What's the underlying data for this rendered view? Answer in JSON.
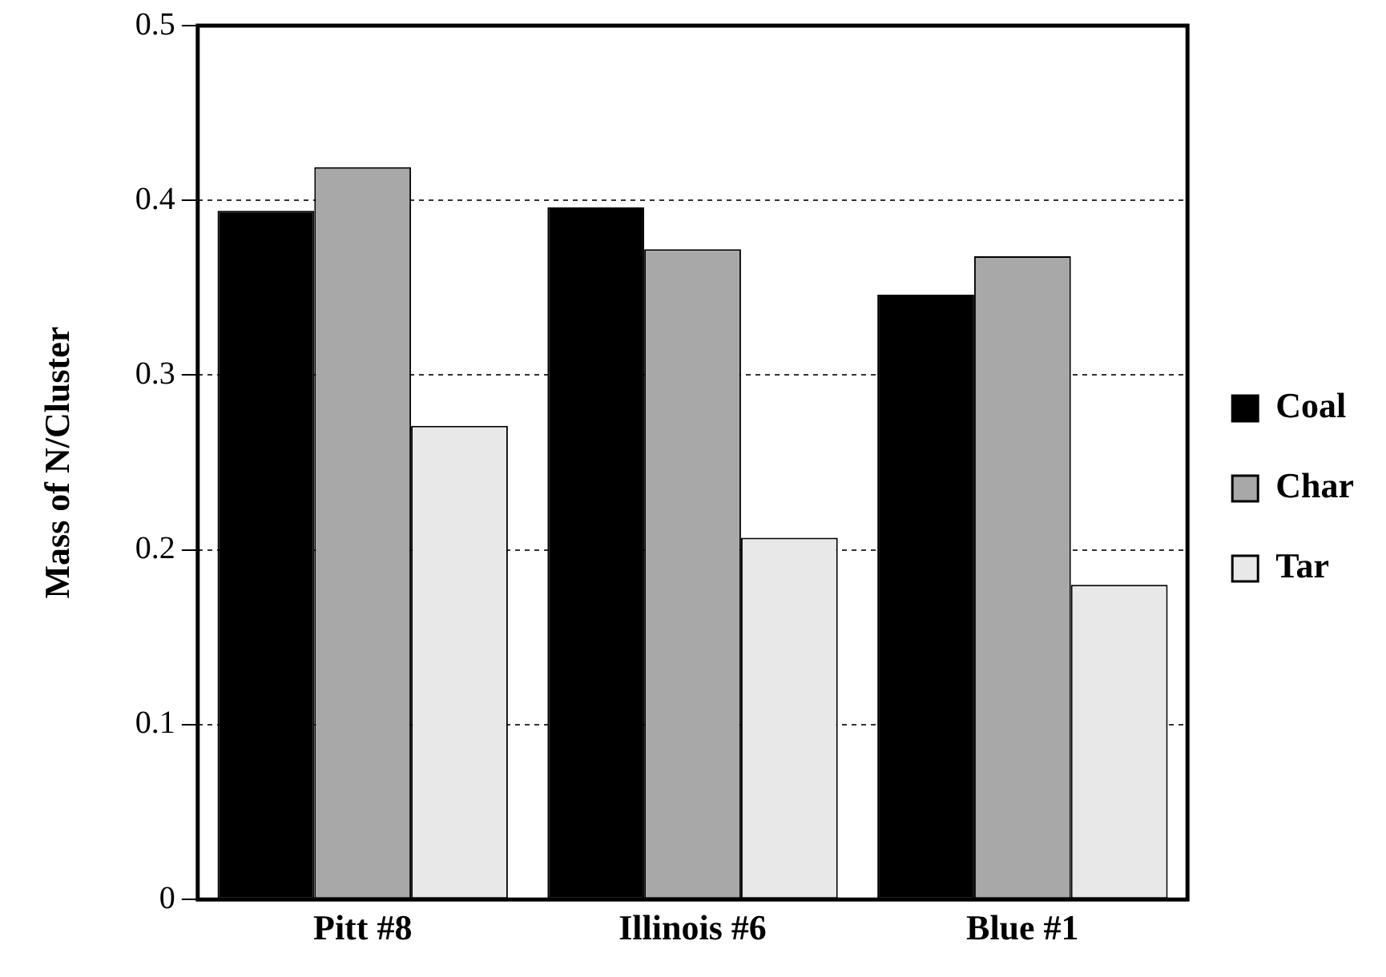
{
  "chart_data": {
    "type": "bar",
    "ylabel": "Mass of N/Cluster",
    "categories": [
      "Pitt #8",
      "Illinois #6",
      "Blue #1"
    ],
    "series": [
      {
        "name": "Coal",
        "color": "#000000",
        "values": [
          0.394,
          0.396,
          0.346
        ]
      },
      {
        "name": "Char",
        "color": "#a8a8a8",
        "values": [
          0.419,
          0.372,
          0.368
        ]
      },
      {
        "name": "Tar",
        "color": "#e8e8e8",
        "values": [
          0.271,
          0.207,
          0.18
        ]
      }
    ],
    "ylim": [
      0,
      0.5
    ],
    "yticks": [
      0,
      0.1,
      0.2,
      0.3,
      0.4,
      0.5
    ],
    "grid": "y",
    "legend": "right"
  }
}
